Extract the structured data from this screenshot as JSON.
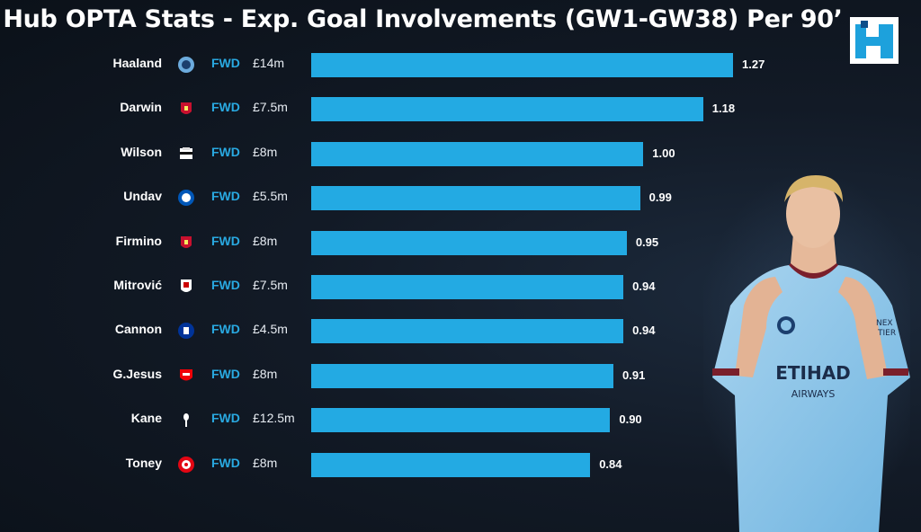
{
  "title": "Hub OPTA Stats - Exp. Goal Involvements (GW1-GW38) Per 90’",
  "logo_letter": "H",
  "colors": {
    "bar": "#23aae3",
    "position": "#29a9e1",
    "background": "#121a26"
  },
  "chart_data": {
    "type": "bar",
    "orientation": "horizontal",
    "title": "Hub OPTA Stats - Exp. Goal Involvements (GW1-GW38) Per 90’",
    "xlim": [
      0,
      1.3
    ],
    "grid": false,
    "rows": [
      {
        "player": "Haaland",
        "club_icon": "man-city-crest",
        "position": "FWD",
        "price": "£14m",
        "value": 1.27,
        "label": "1.27"
      },
      {
        "player": "Darwin",
        "club_icon": "liverpool-crest",
        "position": "FWD",
        "price": "£7.5m",
        "value": 1.18,
        "label": "1.18"
      },
      {
        "player": "Wilson",
        "club_icon": "newcastle-crest",
        "position": "FWD",
        "price": "£8m",
        "value": 1.0,
        "label": "1.00"
      },
      {
        "player": "Undav",
        "club_icon": "brighton-crest",
        "position": "FWD",
        "price": "£5.5m",
        "value": 0.99,
        "label": "0.99"
      },
      {
        "player": "Firmino",
        "club_icon": "liverpool-crest",
        "position": "FWD",
        "price": "£8m",
        "value": 0.95,
        "label": "0.95"
      },
      {
        "player": "Mitrović",
        "club_icon": "fulham-crest",
        "position": "FWD",
        "price": "£7.5m",
        "value": 0.94,
        "label": "0.94"
      },
      {
        "player": "Cannon",
        "club_icon": "everton-crest",
        "position": "FWD",
        "price": "£4.5m",
        "value": 0.94,
        "label": "0.94"
      },
      {
        "player": "G.Jesus",
        "club_icon": "arsenal-crest",
        "position": "FWD",
        "price": "£8m",
        "value": 0.91,
        "label": "0.91"
      },
      {
        "player": "Kane",
        "club_icon": "tottenham-crest",
        "position": "FWD",
        "price": "£12.5m",
        "value": 0.9,
        "label": "0.90"
      },
      {
        "player": "Toney",
        "club_icon": "brentford-crest",
        "position": "FWD",
        "price": "£8m",
        "value": 0.84,
        "label": "0.84"
      }
    ]
  },
  "player_image": {
    "sponsor_text": "ETIHAD",
    "sponsor_sub": "AIRWAYS",
    "sleeve_text": "NEX",
    "sleeve_text2": "TIER"
  }
}
